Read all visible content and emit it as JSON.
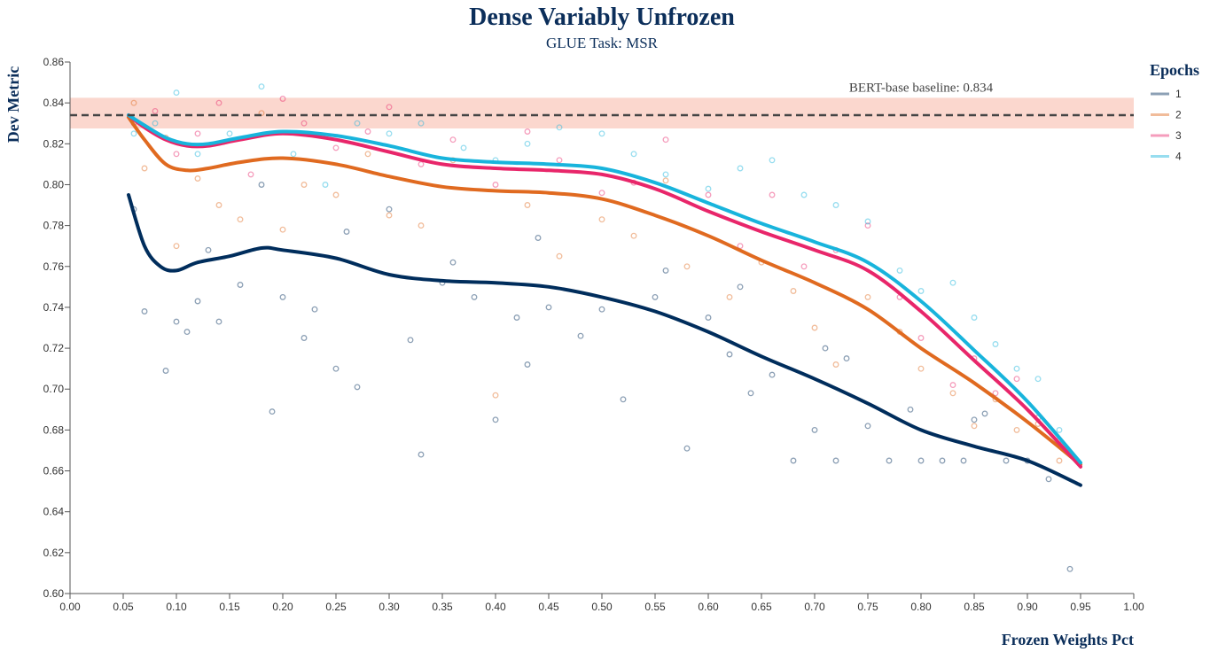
{
  "chart_data": {
    "type": "scatter",
    "title": "Dense Variably Unfrozen",
    "subtitle": "GLUE Task: MSR",
    "xlabel": "Frozen Weights Pct",
    "ylabel": "Dev Metric",
    "xlim": [
      0,
      1
    ],
    "ylim": [
      0.6,
      0.86
    ],
    "x_ticks": [
      "0.00",
      "0.05",
      "0.10",
      "0.15",
      "0.20",
      "0.25",
      "0.30",
      "0.35",
      "0.40",
      "0.45",
      "0.50",
      "0.55",
      "0.60",
      "0.65",
      "0.70",
      "0.75",
      "0.80",
      "0.85",
      "0.90",
      "0.95",
      "1.00"
    ],
    "y_ticks": [
      "0.60",
      "0.62",
      "0.64",
      "0.66",
      "0.68",
      "0.70",
      "0.72",
      "0.74",
      "0.76",
      "0.78",
      "0.80",
      "0.82",
      "0.84",
      "0.86"
    ],
    "grid": false,
    "legend": {
      "title": "Epochs",
      "placement": "right"
    },
    "baseline": {
      "label": "BERT-base baseline: 0.834",
      "value": 0.834,
      "band": [
        0.8275,
        0.8425
      ],
      "band_color": "#f9c9bd",
      "line_color": "#444444"
    },
    "series": [
      {
        "name": "1",
        "color": "#002d5c",
        "trend": [
          [
            0.055,
            0.795
          ],
          [
            0.07,
            0.77
          ],
          [
            0.085,
            0.76
          ],
          [
            0.1,
            0.758
          ],
          [
            0.12,
            0.762
          ],
          [
            0.15,
            0.765
          ],
          [
            0.18,
            0.769
          ],
          [
            0.2,
            0.768
          ],
          [
            0.25,
            0.764
          ],
          [
            0.3,
            0.756
          ],
          [
            0.35,
            0.753
          ],
          [
            0.4,
            0.752
          ],
          [
            0.45,
            0.75
          ],
          [
            0.5,
            0.745
          ],
          [
            0.55,
            0.738
          ],
          [
            0.6,
            0.728
          ],
          [
            0.65,
            0.716
          ],
          [
            0.7,
            0.705
          ],
          [
            0.75,
            0.693
          ],
          [
            0.8,
            0.68
          ],
          [
            0.85,
            0.672
          ],
          [
            0.9,
            0.665
          ],
          [
            0.95,
            0.653
          ]
        ],
        "points": [
          [
            0.06,
            0.788
          ],
          [
            0.07,
            0.738
          ],
          [
            0.09,
            0.709
          ],
          [
            0.1,
            0.733
          ],
          [
            0.11,
            0.728
          ],
          [
            0.12,
            0.743
          ],
          [
            0.14,
            0.733
          ],
          [
            0.16,
            0.751
          ],
          [
            0.19,
            0.689
          ],
          [
            0.2,
            0.745
          ],
          [
            0.22,
            0.725
          ],
          [
            0.23,
            0.739
          ],
          [
            0.25,
            0.71
          ],
          [
            0.27,
            0.701
          ],
          [
            0.3,
            0.788
          ],
          [
            0.32,
            0.724
          ],
          [
            0.33,
            0.668
          ],
          [
            0.35,
            0.752
          ],
          [
            0.38,
            0.745
          ],
          [
            0.4,
            0.685
          ],
          [
            0.42,
            0.735
          ],
          [
            0.43,
            0.712
          ],
          [
            0.45,
            0.74
          ],
          [
            0.48,
            0.726
          ],
          [
            0.5,
            0.739
          ],
          [
            0.52,
            0.695
          ],
          [
            0.55,
            0.745
          ],
          [
            0.58,
            0.671
          ],
          [
            0.6,
            0.735
          ],
          [
            0.62,
            0.717
          ],
          [
            0.64,
            0.698
          ],
          [
            0.66,
            0.707
          ],
          [
            0.68,
            0.665
          ],
          [
            0.7,
            0.68
          ],
          [
            0.72,
            0.665
          ],
          [
            0.73,
            0.715
          ],
          [
            0.75,
            0.682
          ],
          [
            0.77,
            0.665
          ],
          [
            0.8,
            0.665
          ],
          [
            0.82,
            0.665
          ],
          [
            0.84,
            0.665
          ],
          [
            0.86,
            0.688
          ],
          [
            0.88,
            0.665
          ],
          [
            0.9,
            0.665
          ],
          [
            0.92,
            0.656
          ],
          [
            0.94,
            0.612
          ],
          [
            0.13,
            0.768
          ],
          [
            0.18,
            0.8
          ],
          [
            0.26,
            0.777
          ],
          [
            0.36,
            0.762
          ],
          [
            0.44,
            0.774
          ],
          [
            0.56,
            0.758
          ],
          [
            0.63,
            0.75
          ],
          [
            0.71,
            0.72
          ],
          [
            0.79,
            0.69
          ],
          [
            0.85,
            0.685
          ]
        ]
      },
      {
        "name": "2",
        "color": "#e06a20",
        "trend": [
          [
            0.055,
            0.833
          ],
          [
            0.07,
            0.822
          ],
          [
            0.09,
            0.81
          ],
          [
            0.11,
            0.807
          ],
          [
            0.13,
            0.808
          ],
          [
            0.16,
            0.811
          ],
          [
            0.2,
            0.813
          ],
          [
            0.25,
            0.81
          ],
          [
            0.3,
            0.804
          ],
          [
            0.35,
            0.799
          ],
          [
            0.4,
            0.797
          ],
          [
            0.45,
            0.796
          ],
          [
            0.5,
            0.793
          ],
          [
            0.55,
            0.785
          ],
          [
            0.6,
            0.775
          ],
          [
            0.65,
            0.763
          ],
          [
            0.7,
            0.752
          ],
          [
            0.75,
            0.739
          ],
          [
            0.8,
            0.72
          ],
          [
            0.85,
            0.703
          ],
          [
            0.9,
            0.684
          ],
          [
            0.95,
            0.663
          ]
        ],
        "points": [
          [
            0.06,
            0.84
          ],
          [
            0.07,
            0.808
          ],
          [
            0.09,
            0.823
          ],
          [
            0.1,
            0.77
          ],
          [
            0.12,
            0.803
          ],
          [
            0.14,
            0.79
          ],
          [
            0.16,
            0.783
          ],
          [
            0.18,
            0.835
          ],
          [
            0.2,
            0.778
          ],
          [
            0.22,
            0.8
          ],
          [
            0.25,
            0.795
          ],
          [
            0.28,
            0.815
          ],
          [
            0.3,
            0.785
          ],
          [
            0.33,
            0.78
          ],
          [
            0.36,
            0.812
          ],
          [
            0.4,
            0.697
          ],
          [
            0.43,
            0.79
          ],
          [
            0.46,
            0.765
          ],
          [
            0.5,
            0.783
          ],
          [
            0.53,
            0.775
          ],
          [
            0.56,
            0.802
          ],
          [
            0.58,
            0.76
          ],
          [
            0.62,
            0.745
          ],
          [
            0.65,
            0.762
          ],
          [
            0.68,
            0.748
          ],
          [
            0.7,
            0.73
          ],
          [
            0.72,
            0.712
          ],
          [
            0.75,
            0.745
          ],
          [
            0.78,
            0.728
          ],
          [
            0.8,
            0.71
          ],
          [
            0.83,
            0.698
          ],
          [
            0.85,
            0.682
          ],
          [
            0.87,
            0.695
          ],
          [
            0.89,
            0.68
          ],
          [
            0.91,
            0.683
          ],
          [
            0.93,
            0.665
          ]
        ]
      },
      {
        "name": "3",
        "color": "#e8266a",
        "trend": [
          [
            0.055,
            0.834
          ],
          [
            0.07,
            0.828
          ],
          [
            0.09,
            0.822
          ],
          [
            0.11,
            0.819
          ],
          [
            0.13,
            0.819
          ],
          [
            0.16,
            0.822
          ],
          [
            0.2,
            0.825
          ],
          [
            0.25,
            0.822
          ],
          [
            0.3,
            0.816
          ],
          [
            0.35,
            0.81
          ],
          [
            0.4,
            0.808
          ],
          [
            0.45,
            0.807
          ],
          [
            0.5,
            0.805
          ],
          [
            0.55,
            0.798
          ],
          [
            0.6,
            0.787
          ],
          [
            0.65,
            0.777
          ],
          [
            0.7,
            0.768
          ],
          [
            0.75,
            0.758
          ],
          [
            0.8,
            0.738
          ],
          [
            0.85,
            0.714
          ],
          [
            0.9,
            0.69
          ],
          [
            0.95,
            0.662
          ]
        ],
        "points": [
          [
            0.06,
            0.83
          ],
          [
            0.08,
            0.836
          ],
          [
            0.1,
            0.815
          ],
          [
            0.12,
            0.825
          ],
          [
            0.14,
            0.84
          ],
          [
            0.17,
            0.805
          ],
          [
            0.2,
            0.842
          ],
          [
            0.22,
            0.83
          ],
          [
            0.25,
            0.818
          ],
          [
            0.28,
            0.826
          ],
          [
            0.3,
            0.838
          ],
          [
            0.33,
            0.81
          ],
          [
            0.36,
            0.822
          ],
          [
            0.4,
            0.8
          ],
          [
            0.43,
            0.826
          ],
          [
            0.46,
            0.812
          ],
          [
            0.5,
            0.796
          ],
          [
            0.53,
            0.801
          ],
          [
            0.56,
            0.822
          ],
          [
            0.6,
            0.795
          ],
          [
            0.63,
            0.77
          ],
          [
            0.66,
            0.795
          ],
          [
            0.69,
            0.76
          ],
          [
            0.72,
            0.768
          ],
          [
            0.75,
            0.78
          ],
          [
            0.78,
            0.745
          ],
          [
            0.8,
            0.725
          ],
          [
            0.83,
            0.702
          ],
          [
            0.85,
            0.715
          ],
          [
            0.87,
            0.698
          ],
          [
            0.89,
            0.705
          ],
          [
            0.91,
            0.686
          ],
          [
            0.93,
            0.675
          ]
        ]
      },
      {
        "name": "4",
        "color": "#18b4dc",
        "trend": [
          [
            0.055,
            0.834
          ],
          [
            0.07,
            0.829
          ],
          [
            0.09,
            0.823
          ],
          [
            0.11,
            0.82
          ],
          [
            0.13,
            0.82
          ],
          [
            0.16,
            0.823
          ],
          [
            0.2,
            0.826
          ],
          [
            0.25,
            0.824
          ],
          [
            0.3,
            0.819
          ],
          [
            0.35,
            0.813
          ],
          [
            0.4,
            0.811
          ],
          [
            0.45,
            0.81
          ],
          [
            0.5,
            0.808
          ],
          [
            0.55,
            0.801
          ],
          [
            0.6,
            0.791
          ],
          [
            0.65,
            0.781
          ],
          [
            0.7,
            0.772
          ],
          [
            0.75,
            0.762
          ],
          [
            0.8,
            0.743
          ],
          [
            0.85,
            0.719
          ],
          [
            0.9,
            0.694
          ],
          [
            0.95,
            0.664
          ]
        ],
        "points": [
          [
            0.06,
            0.825
          ],
          [
            0.08,
            0.83
          ],
          [
            0.1,
            0.845
          ],
          [
            0.12,
            0.815
          ],
          [
            0.15,
            0.825
          ],
          [
            0.18,
            0.848
          ],
          [
            0.21,
            0.815
          ],
          [
            0.24,
            0.8
          ],
          [
            0.27,
            0.83
          ],
          [
            0.3,
            0.825
          ],
          [
            0.33,
            0.83
          ],
          [
            0.37,
            0.818
          ],
          [
            0.4,
            0.812
          ],
          [
            0.43,
            0.82
          ],
          [
            0.46,
            0.828
          ],
          [
            0.5,
            0.825
          ],
          [
            0.53,
            0.815
          ],
          [
            0.56,
            0.805
          ],
          [
            0.6,
            0.798
          ],
          [
            0.63,
            0.808
          ],
          [
            0.66,
            0.812
          ],
          [
            0.69,
            0.795
          ],
          [
            0.72,
            0.79
          ],
          [
            0.75,
            0.782
          ],
          [
            0.78,
            0.758
          ],
          [
            0.8,
            0.748
          ],
          [
            0.83,
            0.752
          ],
          [
            0.85,
            0.735
          ],
          [
            0.87,
            0.722
          ],
          [
            0.89,
            0.71
          ],
          [
            0.91,
            0.705
          ],
          [
            0.93,
            0.68
          ]
        ]
      }
    ]
  }
}
